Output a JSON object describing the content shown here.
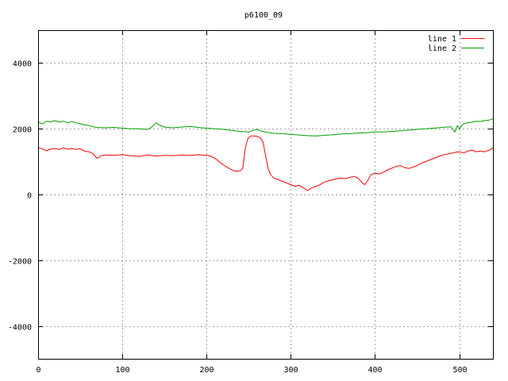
{
  "chart_data": {
    "type": "line",
    "title": "p6100_09",
    "xlabel": "",
    "ylabel": "",
    "xlim": [
      0,
      540
    ],
    "ylim": [
      -5000,
      5000
    ],
    "x_ticks": [
      0,
      100,
      200,
      300,
      400,
      500
    ],
    "y_ticks": [
      -4000,
      -2000,
      0,
      2000,
      4000
    ],
    "grid": true,
    "legend_position": "top-right",
    "series": [
      {
        "name": "line 1",
        "color": "#ff0000",
        "points": [
          [
            0,
            1420
          ],
          [
            5,
            1390
          ],
          [
            10,
            1330
          ],
          [
            15,
            1380
          ],
          [
            20,
            1400
          ],
          [
            25,
            1370
          ],
          [
            30,
            1420
          ],
          [
            35,
            1380
          ],
          [
            40,
            1400
          ],
          [
            45,
            1370
          ],
          [
            50,
            1390
          ],
          [
            55,
            1320
          ],
          [
            60,
            1300
          ],
          [
            65,
            1250
          ],
          [
            70,
            1100
          ],
          [
            75,
            1180
          ],
          [
            80,
            1200
          ],
          [
            90,
            1190
          ],
          [
            100,
            1210
          ],
          [
            110,
            1180
          ],
          [
            120,
            1160
          ],
          [
            130,
            1200
          ],
          [
            140,
            1170
          ],
          [
            150,
            1190
          ],
          [
            160,
            1180
          ],
          [
            170,
            1200
          ],
          [
            180,
            1190
          ],
          [
            190,
            1210
          ],
          [
            200,
            1190
          ],
          [
            205,
            1170
          ],
          [
            210,
            1100
          ],
          [
            215,
            1000
          ],
          [
            220,
            900
          ],
          [
            225,
            820
          ],
          [
            230,
            750
          ],
          [
            235,
            700
          ],
          [
            240,
            720
          ],
          [
            243,
            800
          ],
          [
            246,
            1400
          ],
          [
            249,
            1700
          ],
          [
            252,
            1780
          ],
          [
            256,
            1780
          ],
          [
            260,
            1770
          ],
          [
            264,
            1720
          ],
          [
            267,
            1600
          ],
          [
            270,
            1200
          ],
          [
            273,
            800
          ],
          [
            276,
            600
          ],
          [
            280,
            500
          ],
          [
            285,
            450
          ],
          [
            290,
            400
          ],
          [
            295,
            350
          ],
          [
            300,
            300
          ],
          [
            305,
            250
          ],
          [
            310,
            280
          ],
          [
            315,
            200
          ],
          [
            320,
            120
          ],
          [
            325,
            200
          ],
          [
            330,
            250
          ],
          [
            335,
            300
          ],
          [
            340,
            380
          ],
          [
            345,
            420
          ],
          [
            350,
            450
          ],
          [
            355,
            480
          ],
          [
            360,
            500
          ],
          [
            365,
            480
          ],
          [
            370,
            520
          ],
          [
            375,
            550
          ],
          [
            380,
            500
          ],
          [
            385,
            350
          ],
          [
            388,
            300
          ],
          [
            392,
            450
          ],
          [
            395,
            600
          ],
          [
            400,
            650
          ],
          [
            405,
            620
          ],
          [
            410,
            680
          ],
          [
            415,
            750
          ],
          [
            420,
            800
          ],
          [
            425,
            850
          ],
          [
            430,
            880
          ],
          [
            435,
            820
          ],
          [
            440,
            790
          ],
          [
            445,
            830
          ],
          [
            450,
            880
          ],
          [
            455,
            950
          ],
          [
            460,
            1000
          ],
          [
            465,
            1050
          ],
          [
            470,
            1100
          ],
          [
            475,
            1150
          ],
          [
            480,
            1200
          ],
          [
            485,
            1220
          ],
          [
            490,
            1250
          ],
          [
            495,
            1280
          ],
          [
            500,
            1300
          ],
          [
            505,
            1260
          ],
          [
            510,
            1320
          ],
          [
            515,
            1350
          ],
          [
            520,
            1300
          ],
          [
            525,
            1320
          ],
          [
            530,
            1300
          ],
          [
            535,
            1340
          ],
          [
            538,
            1380
          ],
          [
            540,
            1420
          ]
        ]
      },
      {
        "name": "line 2",
        "color": "#00a000",
        "points": [
          [
            0,
            2200
          ],
          [
            5,
            2150
          ],
          [
            10,
            2230
          ],
          [
            15,
            2210
          ],
          [
            20,
            2250
          ],
          [
            25,
            2200
          ],
          [
            30,
            2230
          ],
          [
            35,
            2180
          ],
          [
            40,
            2220
          ],
          [
            45,
            2180
          ],
          [
            50,
            2150
          ],
          [
            55,
            2120
          ],
          [
            60,
            2100
          ],
          [
            65,
            2060
          ],
          [
            70,
            2040
          ],
          [
            80,
            2030
          ],
          [
            90,
            2040
          ],
          [
            100,
            2020
          ],
          [
            110,
            2000
          ],
          [
            120,
            2000
          ],
          [
            130,
            1980
          ],
          [
            135,
            2050
          ],
          [
            140,
            2180
          ],
          [
            145,
            2100
          ],
          [
            150,
            2050
          ],
          [
            160,
            2030
          ],
          [
            170,
            2050
          ],
          [
            180,
            2070
          ],
          [
            190,
            2040
          ],
          [
            200,
            2020
          ],
          [
            210,
            2000
          ],
          [
            220,
            1980
          ],
          [
            230,
            1950
          ],
          [
            240,
            1920
          ],
          [
            250,
            1900
          ],
          [
            255,
            1950
          ],
          [
            260,
            1980
          ],
          [
            265,
            1930
          ],
          [
            270,
            1900
          ],
          [
            275,
            1880
          ],
          [
            280,
            1860
          ],
          [
            290,
            1850
          ],
          [
            300,
            1830
          ],
          [
            310,
            1810
          ],
          [
            320,
            1790
          ],
          [
            330,
            1780
          ],
          [
            340,
            1800
          ],
          [
            350,
            1820
          ],
          [
            360,
            1840
          ],
          [
            370,
            1850
          ],
          [
            380,
            1870
          ],
          [
            390,
            1880
          ],
          [
            400,
            1900
          ],
          [
            410,
            1900
          ],
          [
            420,
            1920
          ],
          [
            430,
            1940
          ],
          [
            440,
            1960
          ],
          [
            450,
            1980
          ],
          [
            460,
            2000
          ],
          [
            470,
            2020
          ],
          [
            480,
            2040
          ],
          [
            490,
            2060
          ],
          [
            495,
            1900
          ],
          [
            498,
            2100
          ],
          [
            500,
            2000
          ],
          [
            505,
            2150
          ],
          [
            510,
            2180
          ],
          [
            515,
            2200
          ],
          [
            520,
            2230
          ],
          [
            525,
            2220
          ],
          [
            530,
            2250
          ],
          [
            535,
            2260
          ],
          [
            540,
            2300
          ]
        ]
      }
    ]
  }
}
